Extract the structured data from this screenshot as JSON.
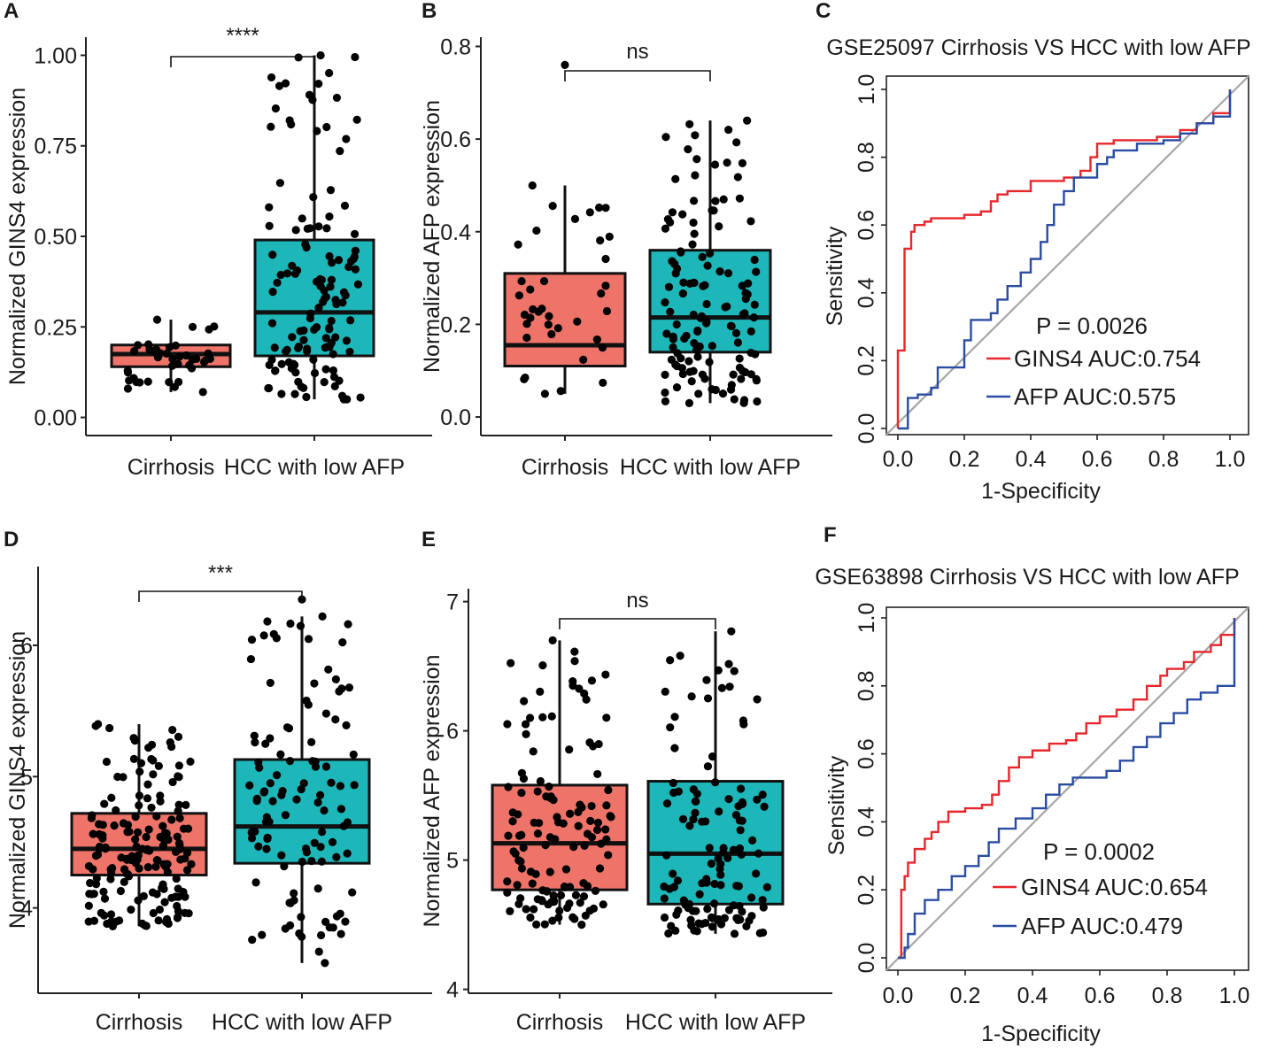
{
  "colors": {
    "cirrhosis_box": "#EE7369",
    "hcc_box": "#1EB7B9",
    "gins4_line": "#E8262B",
    "afp_line": "#2A4CA2",
    "diagonal": "#A6A6A6"
  },
  "chart_data": [
    {
      "id": "A",
      "type": "box",
      "panel_label": "A",
      "ylabel": "Normalized GINS4 expression",
      "categories": [
        "Cirrhosis",
        "HCC with low AFP"
      ],
      "ylim": [
        -0.05,
        1.05
      ],
      "yticks": [
        "0.00",
        "0.25",
        "0.50",
        "0.75",
        "1.00"
      ],
      "significance": "****",
      "boxes": [
        {
          "group": "Cirrhosis",
          "min": 0.07,
          "q1": 0.14,
          "median": 0.175,
          "q3": 0.2,
          "max": 0.27,
          "n": 40,
          "seed": 11
        },
        {
          "group": "HCC with low AFP",
          "min": 0.05,
          "q1": 0.17,
          "median": 0.29,
          "q3": 0.49,
          "max": 1.0,
          "n": 130,
          "seed": 23
        }
      ]
    },
    {
      "id": "B",
      "type": "box",
      "panel_label": "B",
      "ylabel": "Normalized AFP expression",
      "categories": [
        "Cirrhosis",
        "HCC with low AFP"
      ],
      "ylim": [
        -0.04,
        0.82
      ],
      "yticks": [
        "0.0",
        "0.2",
        "0.4",
        "0.6",
        "0.8"
      ],
      "significance": "ns",
      "boxes": [
        {
          "group": "Cirrhosis",
          "min": 0.05,
          "q1": 0.11,
          "median": 0.155,
          "q3": 0.31,
          "max": 0.5,
          "outliers": [
            0.76
          ],
          "n": 38,
          "seed": 37
        },
        {
          "group": "HCC with low AFP",
          "min": 0.03,
          "q1": 0.14,
          "median": 0.215,
          "q3": 0.36,
          "max": 0.64,
          "n": 130,
          "seed": 41
        }
      ]
    },
    {
      "id": "C",
      "type": "roc",
      "panel_label": "C",
      "title": "GSE25097 Cirrhosis VS HCC with low AFP",
      "xlabel": "1-Specificity",
      "ylabel": "Sensitivity",
      "xticks": [
        "0.0",
        "0.2",
        "0.4",
        "0.6",
        "0.8",
        "1.0"
      ],
      "yticks": [
        "0.0",
        "0.2",
        "0.4",
        "0.6",
        "0.8",
        "1.0"
      ],
      "p_value": "P = 0.0026",
      "series": [
        {
          "name": "GINS4",
          "legend": "GINS4  AUC:0.754",
          "auc": 0.754,
          "points": [
            [
              0,
              0
            ],
            [
              0,
              0.23
            ],
            [
              0.02,
              0.23
            ],
            [
              0.02,
              0.53
            ],
            [
              0.04,
              0.58
            ],
            [
              0.05,
              0.6
            ],
            [
              0.08,
              0.61
            ],
            [
              0.1,
              0.62
            ],
            [
              0.2,
              0.63
            ],
            [
              0.25,
              0.64
            ],
            [
              0.28,
              0.67
            ],
            [
              0.3,
              0.69
            ],
            [
              0.33,
              0.7
            ],
            [
              0.37,
              0.7
            ],
            [
              0.4,
              0.73
            ],
            [
              0.5,
              0.74
            ],
            [
              0.55,
              0.76
            ],
            [
              0.58,
              0.8
            ],
            [
              0.6,
              0.84
            ],
            [
              0.65,
              0.85
            ],
            [
              0.78,
              0.86
            ],
            [
              0.85,
              0.88
            ],
            [
              0.9,
              0.9
            ],
            [
              0.95,
              0.93
            ],
            [
              1,
              1
            ]
          ]
        },
        {
          "name": "AFP",
          "legend": "AFP  AUC:0.575",
          "auc": 0.575,
          "points": [
            [
              0,
              0
            ],
            [
              0.03,
              0.02
            ],
            [
              0.03,
              0.09
            ],
            [
              0.06,
              0.1
            ],
            [
              0.1,
              0.12
            ],
            [
              0.12,
              0.18
            ],
            [
              0.2,
              0.2
            ],
            [
              0.2,
              0.26
            ],
            [
              0.22,
              0.32
            ],
            [
              0.28,
              0.34
            ],
            [
              0.3,
              0.38
            ],
            [
              0.33,
              0.42
            ],
            [
              0.37,
              0.46
            ],
            [
              0.4,
              0.5
            ],
            [
              0.43,
              0.55
            ],
            [
              0.45,
              0.6
            ],
            [
              0.47,
              0.66
            ],
            [
              0.5,
              0.7
            ],
            [
              0.53,
              0.74
            ],
            [
              0.6,
              0.78
            ],
            [
              0.63,
              0.8
            ],
            [
              0.65,
              0.82
            ],
            [
              0.72,
              0.84
            ],
            [
              0.8,
              0.85
            ],
            [
              0.85,
              0.87
            ],
            [
              0.9,
              0.9
            ],
            [
              0.95,
              0.92
            ],
            [
              1,
              0.95
            ],
            [
              1,
              1
            ]
          ]
        }
      ]
    },
    {
      "id": "D",
      "type": "box",
      "panel_label": "D",
      "ylabel": "Normalized GINS4 expression",
      "categories": [
        "Cirrhosis",
        "HCC with low AFP"
      ],
      "ylim": [
        3.35,
        6.6
      ],
      "yticks": [
        "4",
        "5",
        "6"
      ],
      "significance": "***",
      "boxes": [
        {
          "group": "Cirrhosis",
          "min": 3.86,
          "q1": 4.25,
          "median": 4.45,
          "q3": 4.72,
          "max": 5.4,
          "n": 170,
          "seed": 53
        },
        {
          "group": "HCC with low AFP",
          "min": 3.58,
          "q1": 4.34,
          "median": 4.62,
          "q3": 5.13,
          "max": 6.22,
          "outliers": [
            6.35
          ],
          "n": 110,
          "seed": 67
        }
      ]
    },
    {
      "id": "E",
      "type": "box",
      "panel_label": "E",
      "ylabel": "Normalized AFP expression",
      "categories": [
        "Cirrhosis",
        "HCC with low AFP"
      ],
      "ylim": [
        3.97,
        7.1
      ],
      "yticks": [
        "4",
        "5",
        "6",
        "7"
      ],
      "significance": "ns",
      "boxes": [
        {
          "group": "Cirrhosis",
          "min": 4.5,
          "q1": 4.77,
          "median": 5.13,
          "q3": 5.58,
          "max": 6.7,
          "n": 130,
          "seed": 71
        },
        {
          "group": "HCC with low AFP",
          "min": 4.43,
          "q1": 4.66,
          "median": 5.05,
          "q3": 5.61,
          "max": 6.77,
          "n": 125,
          "seed": 83
        }
      ]
    },
    {
      "id": "F",
      "type": "roc",
      "panel_label": "F",
      "title": "GSE63898 Cirrhosis VS HCC with low AFP",
      "xlabel": "1-Specificity",
      "ylabel": "Sensitivity",
      "xticks": [
        "0.0",
        "0.2",
        "0.4",
        "0.6",
        "0.8",
        "1.0"
      ],
      "yticks": [
        "0.0",
        "0.2",
        "0.4",
        "0.6",
        "0.8",
        "1.0"
      ],
      "p_value": "P = 0.0002",
      "series": [
        {
          "name": "GINS4",
          "legend": "GINS4  AUC:0.654",
          "auc": 0.654,
          "points": [
            [
              0,
              0
            ],
            [
              0.01,
              0.08
            ],
            [
              0.01,
              0.2
            ],
            [
              0.02,
              0.24
            ],
            [
              0.03,
              0.28
            ],
            [
              0.05,
              0.32
            ],
            [
              0.08,
              0.35
            ],
            [
              0.1,
              0.37
            ],
            [
              0.12,
              0.4
            ],
            [
              0.15,
              0.43
            ],
            [
              0.2,
              0.44
            ],
            [
              0.25,
              0.45
            ],
            [
              0.28,
              0.48
            ],
            [
              0.3,
              0.52
            ],
            [
              0.33,
              0.56
            ],
            [
              0.36,
              0.59
            ],
            [
              0.4,
              0.61
            ],
            [
              0.45,
              0.63
            ],
            [
              0.5,
              0.64
            ],
            [
              0.53,
              0.66
            ],
            [
              0.56,
              0.69
            ],
            [
              0.6,
              0.71
            ],
            [
              0.65,
              0.73
            ],
            [
              0.7,
              0.76
            ],
            [
              0.74,
              0.8
            ],
            [
              0.78,
              0.83
            ],
            [
              0.8,
              0.85
            ],
            [
              0.85,
              0.87
            ],
            [
              0.88,
              0.9
            ],
            [
              0.93,
              0.92
            ],
            [
              0.96,
              0.95
            ],
            [
              1,
              0.99
            ],
            [
              1,
              1
            ]
          ]
        },
        {
          "name": "AFP",
          "legend": "AFP  AUC:0.479",
          "auc": 0.479,
          "points": [
            [
              0,
              0
            ],
            [
              0.02,
              0.03
            ],
            [
              0.03,
              0.07
            ],
            [
              0.05,
              0.13
            ],
            [
              0.08,
              0.17
            ],
            [
              0.12,
              0.2
            ],
            [
              0.16,
              0.24
            ],
            [
              0.2,
              0.27
            ],
            [
              0.24,
              0.3
            ],
            [
              0.27,
              0.34
            ],
            [
              0.3,
              0.38
            ],
            [
              0.35,
              0.41
            ],
            [
              0.4,
              0.44
            ],
            [
              0.44,
              0.48
            ],
            [
              0.48,
              0.51
            ],
            [
              0.52,
              0.53
            ],
            [
              0.57,
              0.53
            ],
            [
              0.62,
              0.55
            ],
            [
              0.66,
              0.58
            ],
            [
              0.7,
              0.62
            ],
            [
              0.74,
              0.65
            ],
            [
              0.78,
              0.69
            ],
            [
              0.82,
              0.72
            ],
            [
              0.86,
              0.76
            ],
            [
              0.9,
              0.78
            ],
            [
              0.95,
              0.8
            ],
            [
              1,
              0.81
            ],
            [
              1,
              1
            ]
          ]
        }
      ]
    }
  ]
}
